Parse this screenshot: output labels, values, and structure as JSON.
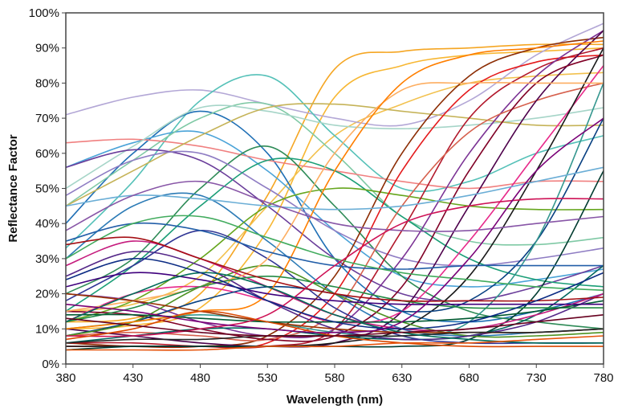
{
  "chart_data": {
    "type": "line",
    "title": "",
    "xlabel": "Wavelength (nm)",
    "ylabel": "Reflectance Factor",
    "xlim": [
      380,
      780
    ],
    "ylim": [
      0,
      100
    ],
    "x_ticks": [
      380,
      430,
      480,
      530,
      580,
      630,
      680,
      730,
      780
    ],
    "x_tick_labels": [
      "380",
      "430",
      "480",
      "530",
      "580",
      "630",
      "680",
      "730",
      "780"
    ],
    "y_ticks": [
      0,
      10,
      20,
      30,
      40,
      50,
      60,
      70,
      80,
      90,
      100
    ],
    "y_tick_labels": [
      "0%",
      "10%",
      "20%",
      "30%",
      "40%",
      "50%",
      "60%",
      "70%",
      "80%",
      "90%",
      "100%"
    ],
    "grid": false,
    "legend": "none",
    "x": [
      380,
      430,
      480,
      530,
      580,
      630,
      680,
      730,
      780
    ],
    "series": [
      {
        "color": "#f5a623",
        "values": [
          12,
          13,
          20,
          48,
          84,
          89,
          90,
          91,
          91
        ]
      },
      {
        "color": "#f7b733",
        "values": [
          10,
          11,
          16,
          38,
          76,
          85,
          88,
          89,
          90
        ]
      },
      {
        "color": "#f2c14e",
        "values": [
          15,
          17,
          25,
          45,
          65,
          74,
          80,
          82,
          83
        ]
      },
      {
        "color": "#b3a7d6",
        "values": [
          71,
          76,
          78,
          74,
          70,
          68,
          75,
          88,
          97
        ]
      },
      {
        "color": "#55c1b8",
        "values": [
          33,
          52,
          75,
          82,
          65,
          50,
          52,
          60,
          65
        ]
      },
      {
        "color": "#1f6fb5",
        "values": [
          40,
          60,
          72,
          60,
          30,
          15,
          12,
          15,
          20
        ]
      },
      {
        "color": "#4aa3d8",
        "values": [
          56,
          63,
          66,
          55,
          38,
          25,
          22,
          24,
          27
        ]
      },
      {
        "color": "#7fc9a5",
        "values": [
          45,
          58,
          70,
          74,
          60,
          42,
          35,
          34,
          36
        ]
      },
      {
        "color": "#f08080",
        "values": [
          63,
          64,
          62,
          58,
          55,
          52,
          50,
          52,
          52
        ]
      },
      {
        "color": "#a6d5c8",
        "values": [
          50,
          62,
          73,
          72,
          68,
          67,
          68,
          70,
          73
        ]
      },
      {
        "color": "#c5b358",
        "values": [
          45,
          55,
          65,
          73,
          74,
          72,
          70,
          68,
          68
        ]
      },
      {
        "color": "#2e8b57",
        "values": [
          20,
          30,
          50,
          62,
          45,
          25,
          15,
          12,
          10
        ]
      },
      {
        "color": "#6a3d9a",
        "values": [
          56,
          61,
          58,
          45,
          30,
          20,
          18,
          22,
          28
        ]
      },
      {
        "color": "#8e7cc3",
        "values": [
          48,
          58,
          60,
          50,
          38,
          30,
          28,
          30,
          33
        ]
      },
      {
        "color": "#2c7bb6",
        "values": [
          30,
          45,
          48,
          35,
          20,
          10,
          8,
          9,
          10
        ]
      },
      {
        "color": "#1b9e77",
        "values": [
          15,
          28,
          45,
          58,
          55,
          42,
          30,
          24,
          22
        ]
      },
      {
        "color": "#66a61e",
        "values": [
          12,
          18,
          30,
          45,
          50,
          48,
          45,
          44,
          44
        ]
      },
      {
        "color": "#8c2d04",
        "values": [
          6,
          5,
          5,
          8,
          25,
          60,
          82,
          90,
          93
        ]
      },
      {
        "color": "#e41a1c",
        "values": [
          5,
          5,
          5,
          6,
          20,
          55,
          78,
          86,
          88
        ]
      },
      {
        "color": "#b2182b",
        "values": [
          6,
          6,
          5,
          5,
          10,
          38,
          70,
          84,
          90
        ]
      },
      {
        "color": "#7b3294",
        "values": [
          20,
          18,
          12,
          8,
          10,
          30,
          60,
          82,
          95
        ]
      },
      {
        "color": "#d6604d",
        "values": [
          8,
          9,
          8,
          7,
          15,
          45,
          66,
          75,
          80
        ]
      },
      {
        "color": "#4d004b",
        "values": [
          10,
          8,
          6,
          5,
          6,
          15,
          45,
          75,
          95
        ]
      },
      {
        "color": "#800026",
        "values": [
          15,
          14,
          10,
          7,
          8,
          22,
          55,
          80,
          88
        ]
      },
      {
        "color": "#e7298a",
        "values": [
          12,
          20,
          22,
          18,
          12,
          15,
          35,
          60,
          85
        ]
      },
      {
        "color": "#1a1a1a",
        "values": [
          5,
          5,
          5,
          5,
          6,
          10,
          25,
          55,
          90
        ]
      },
      {
        "color": "#084081",
        "values": [
          8,
          12,
          18,
          22,
          20,
          15,
          18,
          35,
          70
        ]
      },
      {
        "color": "#003c30",
        "values": [
          4,
          5,
          5,
          5,
          5,
          5,
          7,
          20,
          55
        ]
      },
      {
        "color": "#35978f",
        "values": [
          10,
          12,
          14,
          12,
          9,
          8,
          12,
          35,
          80
        ]
      },
      {
        "color": "#01665e",
        "values": [
          6,
          8,
          10,
          10,
          8,
          7,
          8,
          14,
          28
        ]
      },
      {
        "color": "#4d9221",
        "values": [
          8,
          12,
          22,
          28,
          20,
          12,
          8,
          8,
          9
        ]
      },
      {
        "color": "#542788",
        "values": [
          25,
          32,
          28,
          18,
          10,
          7,
          8,
          12,
          20
        ]
      },
      {
        "color": "#313695",
        "values": [
          18,
          28,
          38,
          30,
          16,
          8,
          6,
          6,
          6
        ]
      },
      {
        "color": "#c51b7d",
        "values": [
          28,
          35,
          30,
          22,
          14,
          10,
          10,
          14,
          20
        ]
      },
      {
        "color": "#fdae61",
        "values": [
          15,
          18,
          22,
          30,
          60,
          78,
          80,
          80,
          80
        ]
      },
      {
        "color": "#ff7f00",
        "values": [
          10,
          12,
          15,
          20,
          55,
          80,
          88,
          90,
          92
        ]
      },
      {
        "color": "#993404",
        "values": [
          20,
          18,
          15,
          12,
          10,
          9,
          9,
          9,
          10
        ]
      },
      {
        "color": "#238b45",
        "values": [
          12,
          16,
          22,
          25,
          22,
          18,
          16,
          16,
          16
        ]
      },
      {
        "color": "#225ea8",
        "values": [
          35,
          40,
          38,
          32,
          28,
          27,
          28,
          28,
          28
        ]
      },
      {
        "color": "#6baed6",
        "values": [
          45,
          48,
          47,
          45,
          44,
          45,
          48,
          52,
          56
        ]
      },
      {
        "color": "#41ab5d",
        "values": [
          30,
          40,
          42,
          36,
          30,
          26,
          24,
          22,
          21
        ]
      },
      {
        "color": "#8856a7",
        "values": [
          38,
          48,
          52,
          46,
          40,
          38,
          38,
          40,
          42
        ]
      },
      {
        "color": "#a50f15",
        "values": [
          34,
          36,
          30,
          24,
          20,
          18,
          18,
          18,
          19
        ]
      },
      {
        "color": "#005a32",
        "values": [
          14,
          14,
          13,
          12,
          12,
          12,
          13,
          15,
          18
        ]
      },
      {
        "color": "#3f007d",
        "values": [
          22,
          26,
          24,
          20,
          18,
          17,
          17,
          17,
          17
        ]
      },
      {
        "color": "#252525",
        "values": [
          6,
          7,
          7,
          8,
          8,
          8,
          9,
          9,
          10
        ]
      },
      {
        "color": "#ce1256",
        "values": [
          8,
          8,
          10,
          14,
          28,
          40,
          45,
          47,
          47
        ]
      },
      {
        "color": "#d94801",
        "values": [
          7,
          10,
          15,
          12,
          8,
          6,
          5,
          5,
          5
        ]
      },
      {
        "color": "#016c59",
        "values": [
          12,
          20,
          26,
          22,
          14,
          9,
          7,
          6,
          6
        ]
      },
      {
        "color": "#67001f",
        "values": [
          13,
          11,
          9,
          8,
          8,
          9,
          10,
          12,
          14
        ]
      },
      {
        "color": "#0c2c84",
        "values": [
          24,
          30,
          26,
          18,
          12,
          10,
          12,
          18,
          26
        ]
      },
      {
        "color": "#7a0177",
        "values": [
          17,
          15,
          12,
          10,
          9,
          12,
          30,
          55,
          70
        ]
      },
      {
        "color": "#e6550d",
        "values": [
          4,
          4,
          4,
          5,
          5,
          6,
          6,
          7,
          8
        ]
      }
    ]
  }
}
